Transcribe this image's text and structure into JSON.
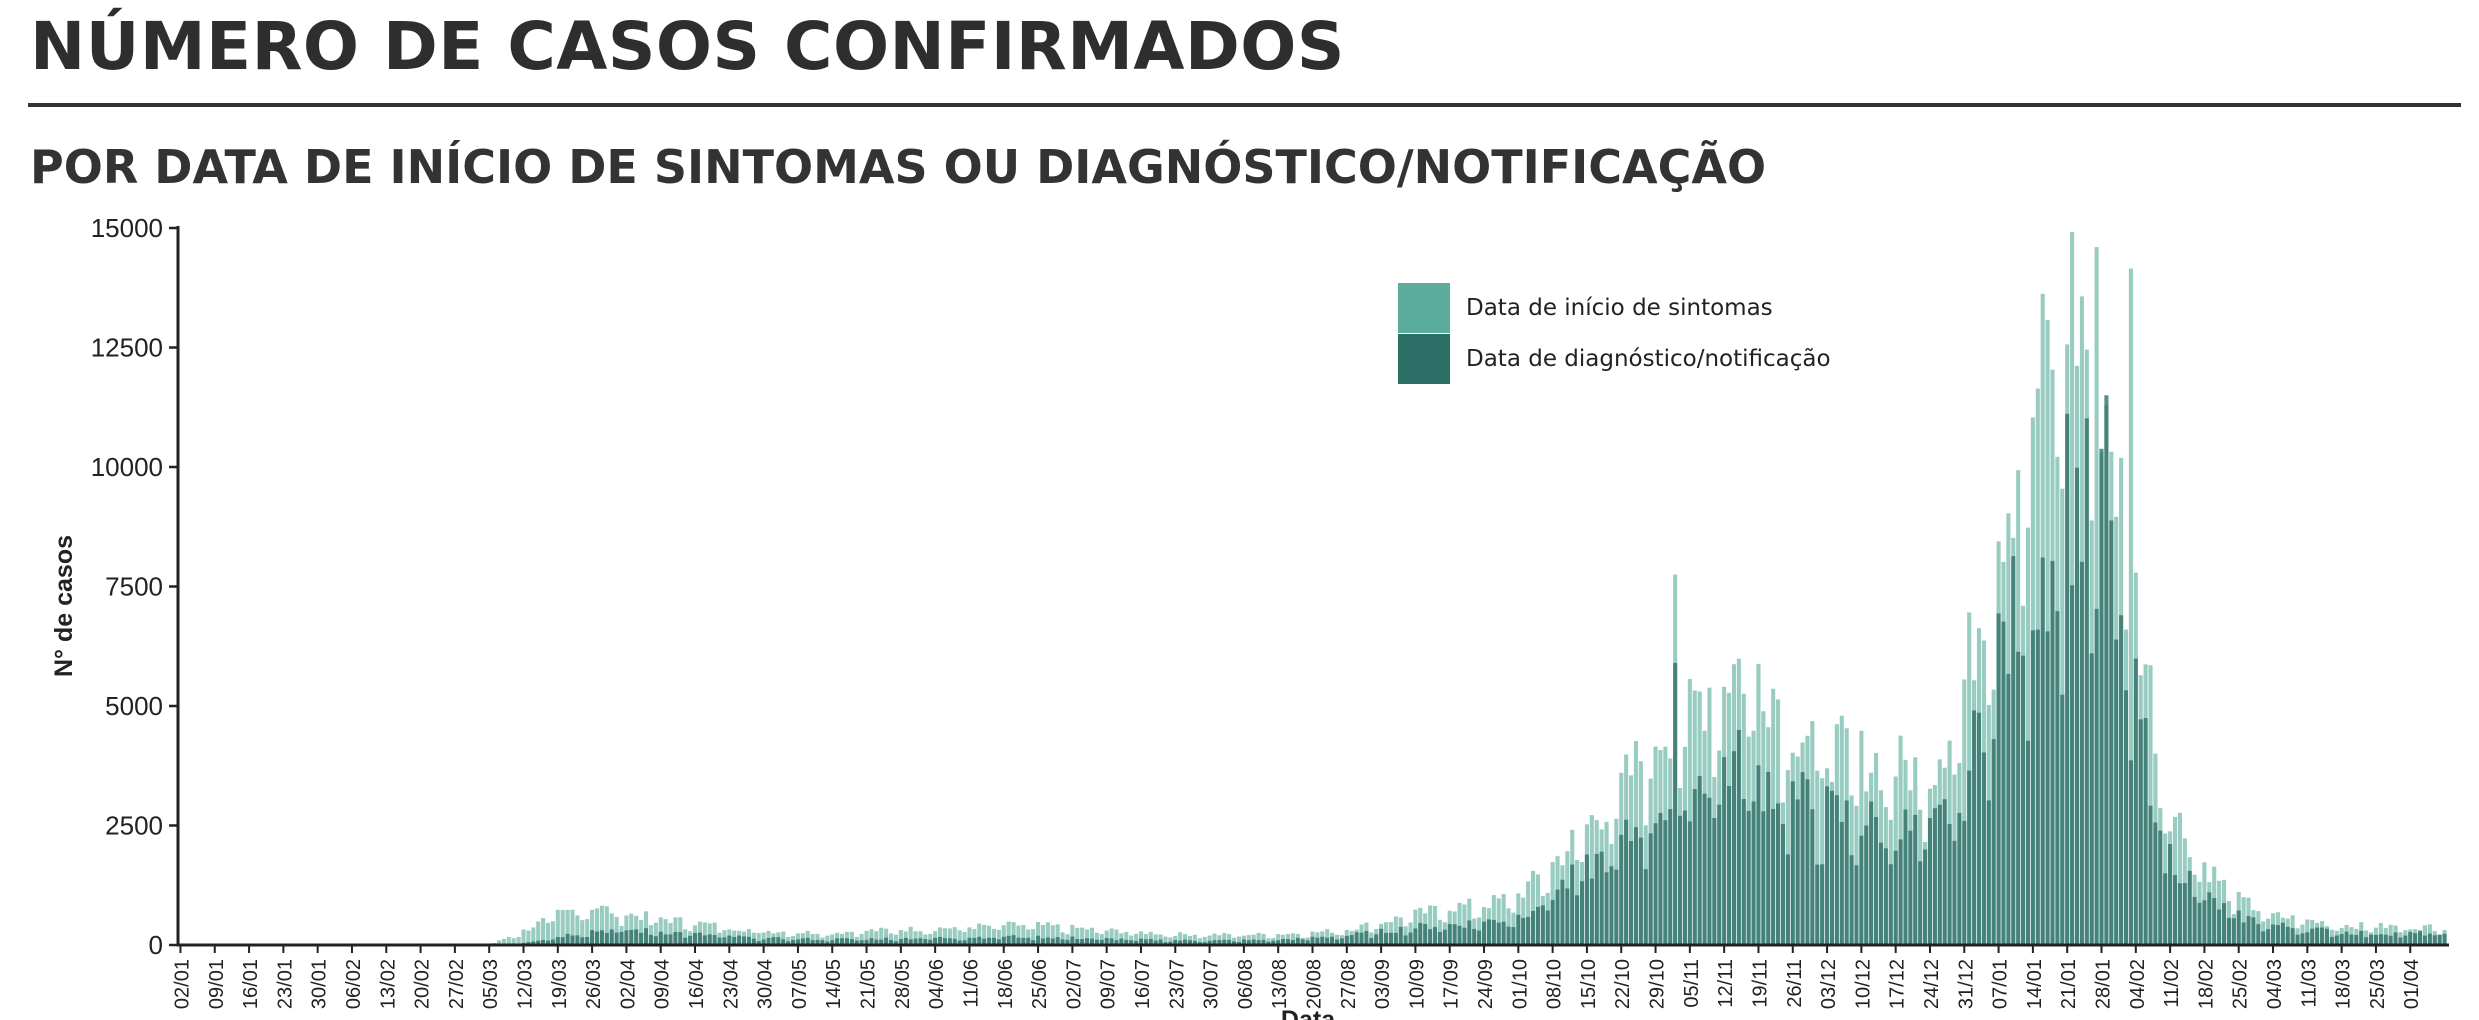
{
  "header": {
    "title": "NÚMERO DE CASOS CONFIRMADOS",
    "subtitle": "POR DATA DE INÍCIO DE SINTOMAS OU DIAGNÓSTICO/NOTIFICAÇÃO"
  },
  "colors": {
    "symptom_onset": "#5aac9b",
    "diagnosis": "#2d6e67",
    "axis": "#222222"
  },
  "chart_data": {
    "type": "bar",
    "xlabel": "Data",
    "ylabel": "N° de casos",
    "ylim": [
      0,
      15000
    ],
    "yticks": [
      0,
      2500,
      5000,
      7500,
      10000,
      12500,
      15000
    ],
    "grid": false,
    "legend_position": "top-right",
    "x_start": "02/01",
    "days": 463,
    "xtick_labels": [
      "02/01",
      "09/01",
      "16/01",
      "23/01",
      "30/01",
      "06/02",
      "13/02",
      "20/02",
      "27/02",
      "05/03",
      "12/03",
      "19/03",
      "26/03",
      "02/04",
      "09/04",
      "16/04",
      "23/04",
      "30/04",
      "07/05",
      "14/05",
      "21/05",
      "28/05",
      "04/06",
      "11/06",
      "18/06",
      "25/06",
      "02/07",
      "09/07",
      "16/07",
      "23/07",
      "30/07",
      "06/08",
      "13/08",
      "20/08",
      "27/08",
      "03/09",
      "10/09",
      "17/09",
      "24/09",
      "01/10",
      "08/10",
      "15/10",
      "22/10",
      "29/10",
      "05/11",
      "12/11",
      "19/11",
      "26/11",
      "03/12",
      "10/12",
      "17/12",
      "24/12",
      "31/12",
      "07/01",
      "14/01",
      "21/01",
      "28/01",
      "04/02",
      "11/02",
      "18/02",
      "25/02",
      "04/03",
      "11/03",
      "18/03",
      "25/03",
      "01/04"
    ],
    "series": [
      {
        "name": "Data de início de sintomas",
        "weekly_anchor_values": [
          0,
          0,
          0,
          0,
          0,
          0,
          0,
          0,
          0,
          0,
          300,
          650,
          820,
          650,
          560,
          470,
          370,
          300,
          270,
          260,
          300,
          330,
          350,
          380,
          420,
          420,
          360,
          310,
          270,
          230,
          220,
          220,
          230,
          260,
          330,
          480,
          650,
          800,
          850,
          1050,
          1700,
          2500,
          3300,
          4400,
          5000,
          5800,
          5900,
          4700,
          4200,
          3900,
          3800,
          3600,
          5500,
          9000,
          11200,
          13800,
          12000,
          7200,
          2900,
          1700,
          950,
          620,
          520,
          420,
          400,
          380
        ],
        "spikes": [
          {
            "week_index": 43.6,
            "value": 7750
          },
          {
            "week_index": 55.8,
            "value": 14600
          },
          {
            "week_index": 56.8,
            "value": 14150
          }
        ]
      },
      {
        "name": "Data de diagnóstico/notificação",
        "weekly_anchor_values": [
          0,
          0,
          0,
          0,
          0,
          0,
          0,
          0,
          0,
          0,
          50,
          180,
          300,
          320,
          280,
          230,
          180,
          140,
          130,
          120,
          130,
          140,
          150,
          160,
          180,
          170,
          150,
          130,
          110,
          100,
          95,
          100,
          110,
          150,
          200,
          280,
          380,
          430,
          480,
          600,
          1100,
          1600,
          2100,
          2900,
          3300,
          3900,
          3600,
          3100,
          2800,
          2600,
          2500,
          2300,
          3300,
          6200,
          7500,
          9500,
          8800,
          5000,
          1900,
          1000,
          600,
          420,
          340,
          270,
          250,
          240
        ],
        "spikes": [
          {
            "week_index": 43.6,
            "value": 5900
          },
          {
            "week_index": 56.2,
            "value": 11500
          }
        ]
      }
    ]
  }
}
